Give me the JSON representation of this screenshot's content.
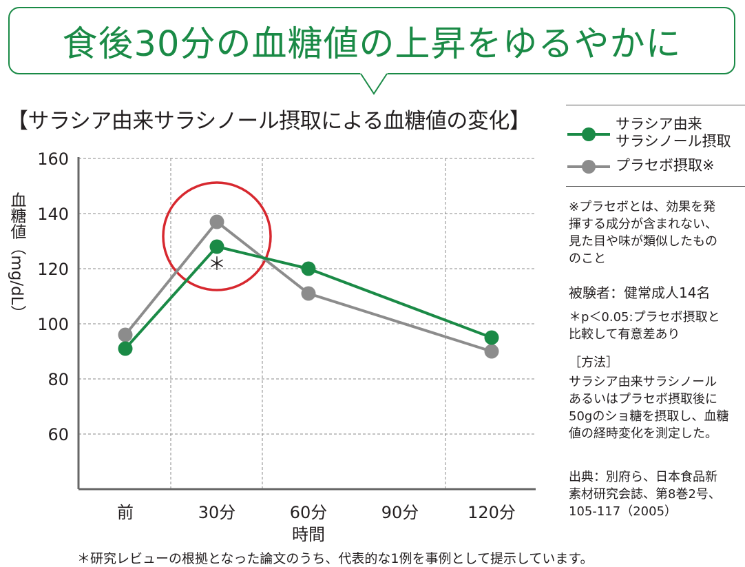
{
  "header": {
    "banner_title": "食後30分の血糖値の上昇をゆるやかに",
    "chart_title": "【サラシア由来サラシノール摂取による血糖値の変化】"
  },
  "legend": {
    "items": [
      {
        "label": "サラシア由来\nサラシノール摂取",
        "color": "#1a8a46"
      },
      {
        "label": "プラセボ摂取※",
        "color": "#8c8c8c"
      }
    ]
  },
  "notes": {
    "placebo_note": "※プラセボとは、効果を発\n揮する成分が含まれない、\n見た目や味が類似したもの\nのこと",
    "subjects": "被験者：健常成人14名",
    "significance": "＊p＜0.05:プラセボ摂取と\n比較して有意差あり",
    "method_heading": "［方法］",
    "method_body": "サラシア由来サラシノール\nあるいはプラセボ摂取後に\n50gのショ糖を摂取し、血糖\n値の経時変化を測定した。",
    "source": "出典：別府ら、日本食品新\n素材研究会誌、第8巻2号、\n105-117（2005）"
  },
  "footnote": "＊研究レビューの根拠となった論文のうち、代表的な1例を事例として提示しています。",
  "chart_data": {
    "type": "line",
    "categories": [
      "前",
      "30分",
      "60分",
      "90分",
      "120分"
    ],
    "series": [
      {
        "name": "サラシア由来サラシノール摂取",
        "color": "#1a8a46",
        "values": [
          91,
          128,
          120,
          null,
          95
        ]
      },
      {
        "name": "プラセボ摂取※",
        "color": "#8c8c8c",
        "values": [
          96,
          137,
          111,
          null,
          90
        ]
      }
    ],
    "xlabel": "時間",
    "ylabel": "血糖値（mg/dL）",
    "ylim": [
      40,
      160
    ],
    "yticks": [
      160,
      140,
      120,
      100,
      80,
      60
    ],
    "grid": true,
    "annotations": [
      {
        "text": "＊",
        "category": "30分",
        "series": 0
      },
      {
        "type": "circle",
        "category": "30分",
        "color": "#d7282f"
      }
    ]
  }
}
